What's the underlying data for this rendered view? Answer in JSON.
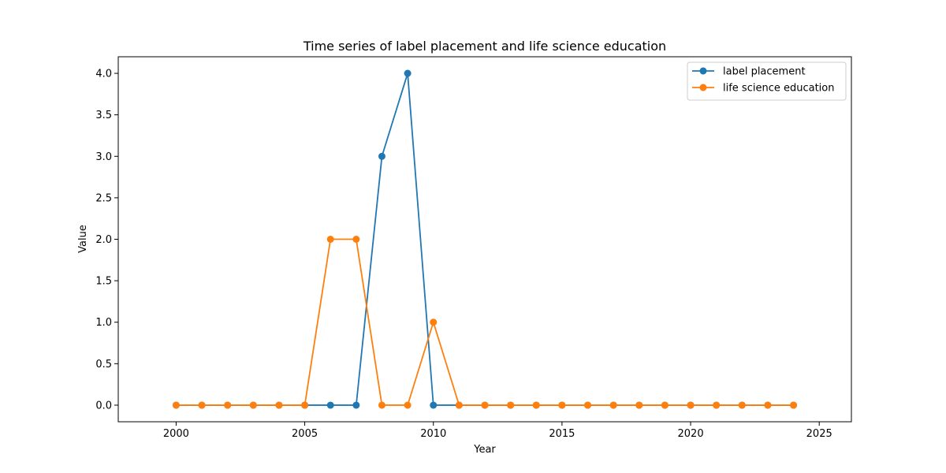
{
  "chart_data": {
    "type": "line",
    "title": "Time series of label placement and life science education",
    "xlabel": "Year",
    "ylabel": "Value",
    "x": [
      2000,
      2001,
      2002,
      2003,
      2004,
      2005,
      2006,
      2007,
      2008,
      2009,
      2010,
      2011,
      2012,
      2013,
      2014,
      2015,
      2016,
      2017,
      2018,
      2019,
      2020,
      2021,
      2022,
      2023,
      2024
    ],
    "xlim": [
      1997.75,
      2026.25
    ],
    "ylim": [
      -0.2,
      4.2
    ],
    "xticks": [
      2000,
      2005,
      2010,
      2015,
      2020,
      2025
    ],
    "yticks": [
      0.0,
      0.5,
      1.0,
      1.5,
      2.0,
      2.5,
      3.0,
      3.5,
      4.0
    ],
    "xtick_labels": [
      "2000",
      "2005",
      "2010",
      "2015",
      "2020",
      "2025"
    ],
    "ytick_labels": [
      "0.0",
      "0.5",
      "1.0",
      "1.5",
      "2.0",
      "2.5",
      "3.0",
      "3.5",
      "4.0"
    ],
    "grid": false,
    "legend_position": "top-right",
    "series": [
      {
        "name": "label placement",
        "color": "#1f77b4",
        "values": [
          0,
          0,
          0,
          0,
          0,
          0,
          0,
          0,
          3,
          4,
          0,
          0,
          0,
          0,
          0,
          0,
          0,
          0,
          0,
          0,
          0,
          0,
          0,
          0,
          0
        ]
      },
      {
        "name": "life science education",
        "color": "#ff7f0e",
        "values": [
          0,
          0,
          0,
          0,
          0,
          0,
          2,
          2,
          0,
          0,
          1,
          0,
          0,
          0,
          0,
          0,
          0,
          0,
          0,
          0,
          0,
          0,
          0,
          0,
          0
        ]
      }
    ]
  }
}
